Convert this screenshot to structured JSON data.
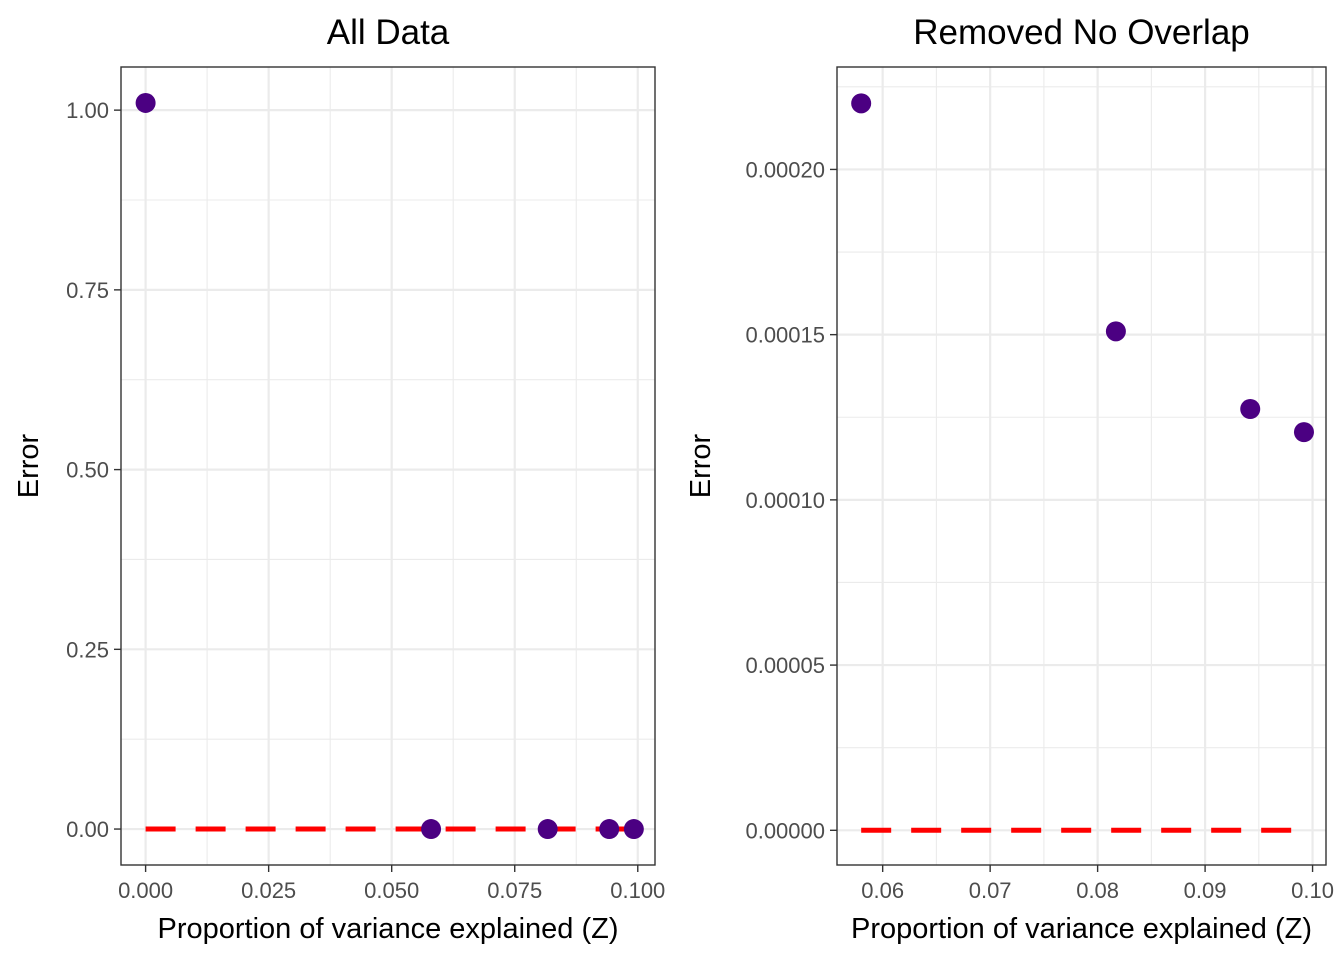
{
  "chart_data": [
    {
      "type": "scatter",
      "title": "All Data",
      "xlabel": "Proportion of variance explained (Z)",
      "ylabel": "Error",
      "xlim": [
        -0.005,
        0.1035
      ],
      "ylim": [
        -0.05,
        1.06
      ],
      "x_ticks": [
        0.0,
        0.025,
        0.05,
        0.075,
        0.1
      ],
      "x_tick_labels": [
        "0.000",
        "0.025",
        "0.050",
        "0.075",
        "0.100"
      ],
      "y_ticks": [
        0.0,
        0.25,
        0.5,
        0.75,
        1.0
      ],
      "y_tick_labels": [
        "0.00",
        "0.25",
        "0.50",
        "0.75",
        "1.00"
      ],
      "grid": true,
      "points": [
        {
          "x": 0.0,
          "y": 1.01
        },
        {
          "x": 0.058,
          "y": 0.0
        },
        {
          "x": 0.0817,
          "y": 0.0
        },
        {
          "x": 0.0942,
          "y": 0.0
        },
        {
          "x": 0.0992,
          "y": 0.0
        }
      ],
      "reference_line": {
        "y": 0,
        "style": "dashed",
        "color": "#ff0000",
        "x_range": [
          0.0,
          0.1
        ]
      }
    },
    {
      "type": "scatter",
      "title": "Removed No Overlap",
      "xlabel": "Proportion of variance explained (Z)",
      "ylabel": "Error",
      "xlim": [
        0.05575,
        0.10125
      ],
      "ylim": [
        -1.05e-05,
        0.000231
      ],
      "x_ticks": [
        0.06,
        0.07,
        0.08,
        0.09,
        0.1
      ],
      "x_tick_labels": [
        "0.06",
        "0.07",
        "0.08",
        "0.09",
        "0.10"
      ],
      "y_ticks": [
        0.0,
        5e-05,
        0.0001,
        0.00015,
        0.0002
      ],
      "y_tick_labels": [
        "0.00000",
        "0.00005",
        "0.00010",
        "0.00015",
        "0.00020"
      ],
      "grid": true,
      "points": [
        {
          "x": 0.058,
          "y": 0.00022
        },
        {
          "x": 0.0817,
          "y": 0.000151
        },
        {
          "x": 0.0942,
          "y": 0.0001275
        },
        {
          "x": 0.0992,
          "y": 0.0001205
        }
      ],
      "reference_line": {
        "y": 0,
        "style": "dashed",
        "color": "#ff0000",
        "x_range": [
          0.058,
          0.0992
        ]
      }
    }
  ],
  "colors": {
    "point": "#4b0082",
    "reference_line": "#ff0000",
    "grid": "#ebebeb",
    "border": "#333333",
    "tick_text": "#4d4d4d"
  }
}
